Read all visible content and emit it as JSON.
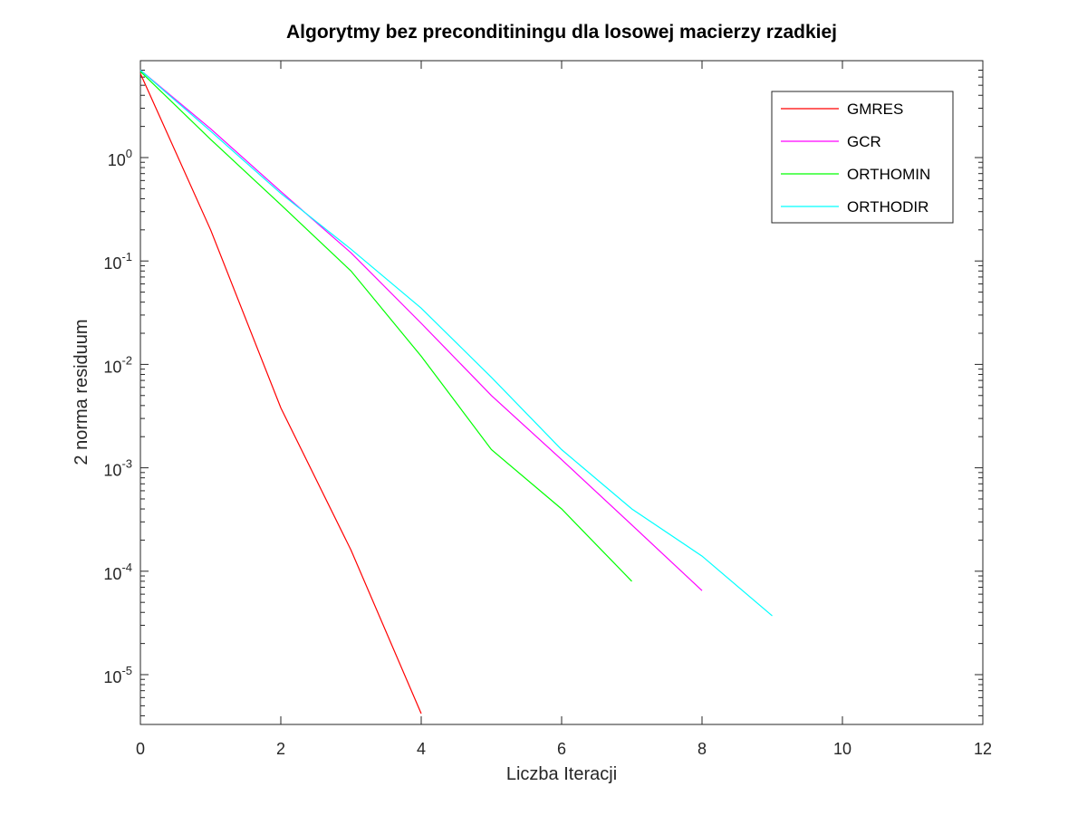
{
  "chart_data": {
    "type": "line",
    "title": "Algorytmy bez preconditiningu dla losowej macierzy rzadkiej",
    "xlabel": "Liczba Iteracji",
    "ylabel": "2 norma residuum",
    "xlim": [
      0,
      12
    ],
    "ylim": [
      3e-06,
      7
    ],
    "yscale": "log",
    "xticks": [
      "0",
      "2",
      "4",
      "6",
      "8",
      "10",
      "12"
    ],
    "yticks": [
      {
        "base": "10",
        "exp": "0"
      },
      {
        "base": "10",
        "exp": "-1"
      },
      {
        "base": "10",
        "exp": "-2"
      },
      {
        "base": "10",
        "exp": "-3"
      },
      {
        "base": "10",
        "exp": "-4"
      },
      {
        "base": "10",
        "exp": "-5"
      }
    ],
    "grid": false,
    "legend_position": "top-right",
    "series": [
      {
        "name": "GMRES",
        "color": "#ff0000",
        "x": [
          0,
          1,
          2,
          3,
          4
        ],
        "y": [
          6.5,
          0.2,
          0.0038,
          0.00016,
          4.2e-06
        ]
      },
      {
        "name": "GCR",
        "color": "#ff00ff",
        "x": [
          0,
          1,
          2,
          3,
          4,
          5,
          6,
          7,
          8
        ],
        "y": [
          7,
          1.9,
          0.47,
          0.12,
          0.025,
          0.005,
          0.0012,
          0.00028,
          6.5e-05
        ]
      },
      {
        "name": "ORTHOMIN",
        "color": "#00ff00",
        "x": [
          0,
          1,
          2,
          3,
          4,
          5,
          6,
          7
        ],
        "y": [
          6.8,
          1.5,
          0.35,
          0.08,
          0.012,
          0.0015,
          0.0004,
          8e-05
        ]
      },
      {
        "name": "ORTHODIR",
        "color": "#00ffff",
        "x": [
          0,
          1,
          2,
          3,
          4,
          5,
          6,
          7,
          8,
          9
        ],
        "y": [
          7,
          1.8,
          0.45,
          0.13,
          0.035,
          0.0075,
          0.0015,
          0.0004,
          0.00014,
          3.7e-05
        ]
      }
    ]
  }
}
